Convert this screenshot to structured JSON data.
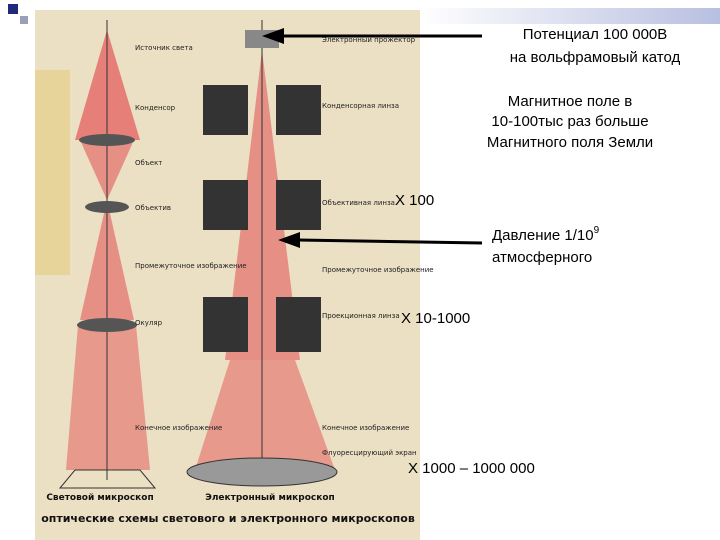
{
  "annotations": {
    "cathode": [
      "Потенциал 100 000В",
      "на вольфрамовый катод"
    ],
    "magnetic": [
      "Магнитное поле в",
      "10-100тыс раз больше",
      "Магнитного поля Земли"
    ],
    "pressure": {
      "text": "Давление 1/10",
      "superscript": "9",
      "line2": "атмосферного"
    },
    "magnification": [
      "X 100",
      "X 10-1000",
      "X 1000 – 1000 000"
    ]
  },
  "image": {
    "left_labels": [
      "Источник света",
      "Конденсор",
      "Объект",
      "Объектив",
      "Промежуточное изображение",
      "Окуляр",
      "Конечное изображение"
    ],
    "right_labels": [
      "Электронный прожектор",
      "Конденсорная линза",
      "Объективная линза",
      "Промежуточное изображение",
      "Проекционная линза",
      "Конечное изображение",
      "Флуоресцирующий экран"
    ],
    "captions": [
      "Световой микроскоп",
      "Электронный микроскоп"
    ],
    "footer": "оптические схемы светового и электронного микроскопов"
  }
}
